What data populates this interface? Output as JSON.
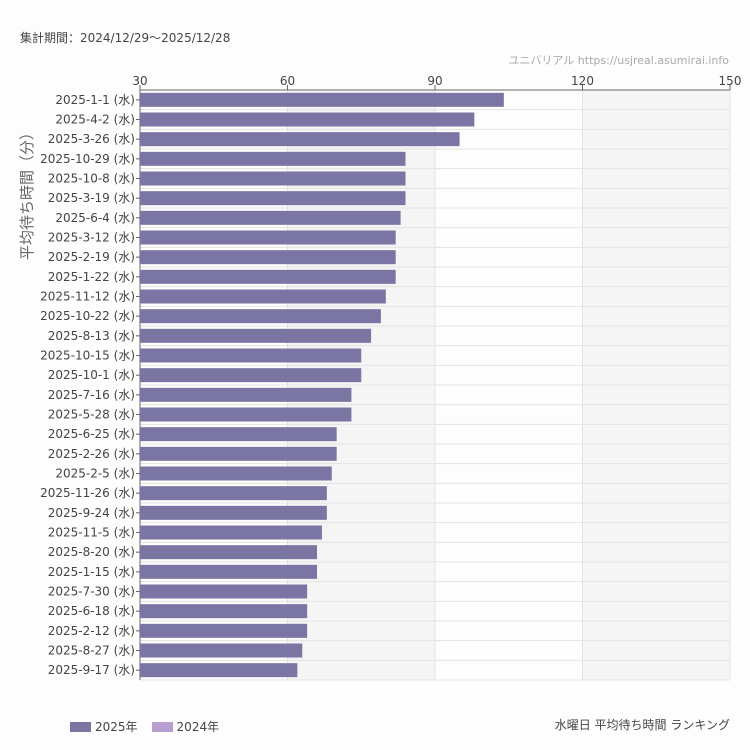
{
  "header": {
    "period": "集計期間：2024/12/29〜2025/12/28",
    "credit": "ユニバリアル  https://usjreal.asumirai.info"
  },
  "footer": {
    "title": "水曜日 平均待ち時間 ランキング"
  },
  "chart_data": {
    "type": "bar",
    "orientation": "horizontal",
    "title": "水曜日 平均待ち時間 ランキング",
    "ylabel": "平均待ち時間（分）",
    "xlim": [
      30,
      150
    ],
    "xticks": [
      "30",
      "60",
      "90",
      "120",
      "150"
    ],
    "grid": true,
    "legend_placement": "bottom-left",
    "legend": [
      {
        "name": "2025年",
        "color": "#7b75a3"
      },
      {
        "name": "2024年",
        "color": "#b7a0cf"
      }
    ],
    "categories": [
      "2025-1-1 (水)",
      "2025-4-2 (水)",
      "2025-3-26 (水)",
      "2025-10-29 (水)",
      "2025-10-8 (水)",
      "2025-3-19 (水)",
      "2025-6-4 (水)",
      "2025-3-12 (水)",
      "2025-2-19 (水)",
      "2025-1-22 (水)",
      "2025-11-12 (水)",
      "2025-10-22 (水)",
      "2025-8-13 (水)",
      "2025-10-15 (水)",
      "2025-10-1 (水)",
      "2025-7-16 (水)",
      "2025-5-28 (水)",
      "2025-6-25 (水)",
      "2025-2-26 (水)",
      "2025-2-5 (水)",
      "2025-11-26 (水)",
      "2025-9-24 (水)",
      "2025-11-5 (水)",
      "2025-8-20 (水)",
      "2025-1-15 (水)",
      "2025-7-30 (水)",
      "2025-6-18 (水)",
      "2025-2-12 (水)",
      "2025-8-27 (水)",
      "2025-9-17 (水)"
    ],
    "series": [
      {
        "name": "2025年",
        "values": [
          104,
          98,
          95,
          84,
          84,
          84,
          83,
          82,
          82,
          82,
          80,
          79,
          77,
          75,
          75,
          73,
          73,
          70,
          70,
          69,
          68,
          68,
          67,
          66,
          66,
          64,
          64,
          64,
          63,
          62
        ]
      }
    ]
  }
}
